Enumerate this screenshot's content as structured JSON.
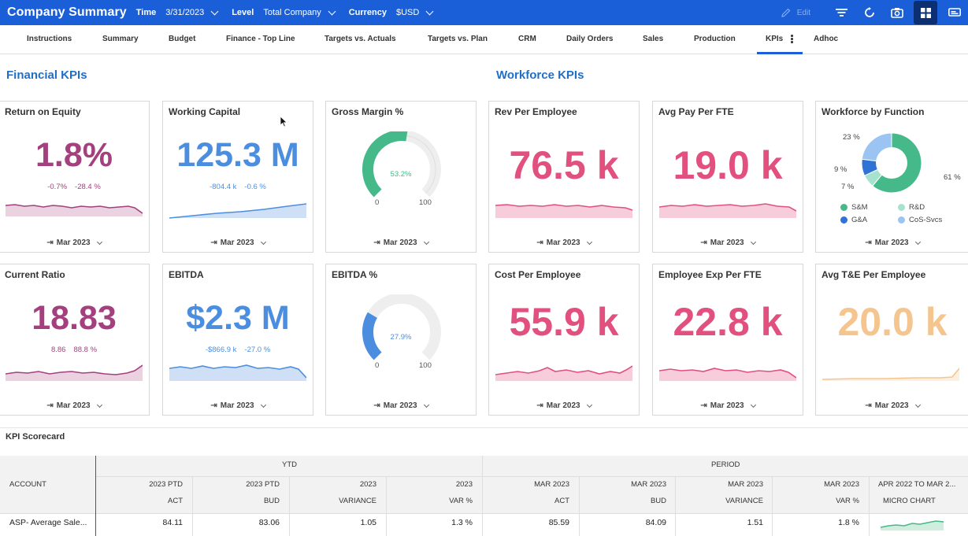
{
  "app": {
    "title": "Company Summary"
  },
  "filters": [
    {
      "label": "Time",
      "value": "3/31/2023"
    },
    {
      "label": "Level",
      "value": "Total Company"
    },
    {
      "label": "Currency",
      "value": "$USD"
    }
  ],
  "toolbar": {
    "edit_label": "Edit"
  },
  "tabs": [
    "Instructions",
    "Summary",
    "Budget",
    "Finance - Top Line",
    "Targets vs. Actuals",
    "Targets vs. Plan",
    "CRM",
    "Daily Orders",
    "Sales",
    "Production",
    "KPIs",
    "Adhoc"
  ],
  "active_tab": "KPIs",
  "sections": {
    "financial": "Financial KPIs",
    "workforce": "Workforce KPIs"
  },
  "colors": {
    "brand": "#1a5fd8",
    "magenta": "#a4407e",
    "blue": "#4b8ee0",
    "pink": "#e2507f",
    "peach": "#f5c58f",
    "green": "#46b98a"
  },
  "period_label": "Mar 2023",
  "cards": {
    "roe": {
      "title": "Return on Equity",
      "value": "1.8%",
      "sub1": "-0.7%",
      "sub2": "-28.4 %"
    },
    "wc": {
      "title": "Working Capital",
      "value": "125.3 M",
      "sub1": "-804.4 k",
      "sub2": "-0.6 %"
    },
    "gm": {
      "title": "Gross Margin %",
      "center": "53.2%",
      "min": "0",
      "max": "100",
      "level": 53.2
    },
    "rpe": {
      "title": "Rev Per Employee",
      "value": "76.5 k"
    },
    "app": {
      "title": "Avg Pay Per FTE",
      "value": "19.0 k"
    },
    "wbf": {
      "title": "Workforce by Function",
      "p1": "23 %",
      "p2": "9 %",
      "p3": "7 %",
      "p4": "61 %",
      "legend": [
        "S&M",
        "R&D",
        "G&A",
        "CoS-Svcs"
      ],
      "shares": [
        61,
        23,
        9,
        7
      ]
    },
    "cr": {
      "title": "Current Ratio",
      "value": "18.83",
      "sub1": "8.86",
      "sub2": "88.8 %"
    },
    "ebitda": {
      "title": "EBITDA",
      "value": "$2.3 M",
      "sub1": "-$866.9 k",
      "sub2": "-27.0 %"
    },
    "ebitdapct": {
      "title": "EBITDA %",
      "center": "27.9%",
      "min": "0",
      "max": "100",
      "level": 27.9
    },
    "cpe": {
      "title": "Cost Per Employee",
      "value": "55.9 k"
    },
    "eef": {
      "title": "Employee Exp Per FTE",
      "value": "22.8 k"
    },
    "ate": {
      "title": "Avg T&E Per Employee",
      "value": "20.0 k"
    }
  },
  "scorecard": {
    "title": "KPI Scorecard",
    "group_ytd": "YTD",
    "group_period": "PERIOD",
    "account_header": "ACCOUNT",
    "columns": [
      {
        "top": "2023 PTD",
        "bottom": "ACT"
      },
      {
        "top": "2023 PTD",
        "bottom": "BUD"
      },
      {
        "top": "2023",
        "bottom": "VARIANCE"
      },
      {
        "top": "2023",
        "bottom": "VAR %"
      },
      {
        "top": "MAR 2023",
        "bottom": "ACT"
      },
      {
        "top": "MAR 2023",
        "bottom": "BUD"
      },
      {
        "top": "MAR 2023",
        "bottom": "VARIANCE"
      },
      {
        "top": "MAR 2023",
        "bottom": "VAR %"
      },
      {
        "top": "APR 2022 TO MAR 2...",
        "bottom": "MICRO CHART"
      }
    ],
    "rows": [
      {
        "account": "ASP- Average Sale...",
        "cells": [
          "84.11",
          "83.06",
          "1.05",
          "1.3 %",
          "85.59",
          "84.09",
          "1.51",
          "1.8 %"
        ]
      }
    ]
  }
}
